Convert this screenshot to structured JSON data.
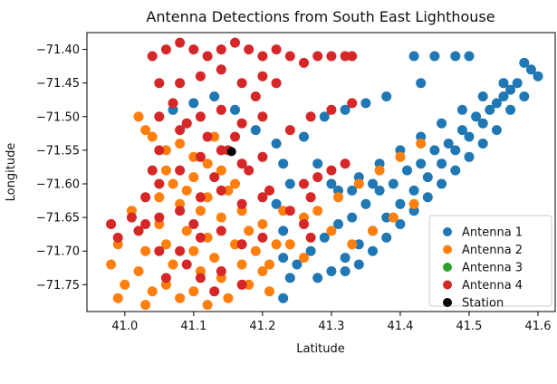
{
  "chart_data": {
    "type": "scatter",
    "title": "Antenna Detections from South East Lighthouse",
    "xlabel": "Latitude",
    "ylabel": "Longitude",
    "xlim": [
      40.945,
      41.625
    ],
    "ylim": [
      -71.79,
      -71.375
    ],
    "xticks": [
      {
        "value": 41.0,
        "label": "41.0"
      },
      {
        "value": 41.1,
        "label": "41.1"
      },
      {
        "value": 41.2,
        "label": "41.2"
      },
      {
        "value": 41.3,
        "label": "41.3"
      },
      {
        "value": 41.4,
        "label": "41.4"
      },
      {
        "value": 41.5,
        "label": "41.5"
      },
      {
        "value": 41.6,
        "label": "41.6"
      }
    ],
    "yticks": [
      {
        "value": -71.4,
        "label": "−71.40"
      },
      {
        "value": -71.45,
        "label": "−71.45"
      },
      {
        "value": -71.5,
        "label": "−71.50"
      },
      {
        "value": -71.55,
        "label": "−71.55"
      },
      {
        "value": -71.6,
        "label": "−71.60"
      },
      {
        "value": -71.65,
        "label": "−71.65"
      },
      {
        "value": -71.7,
        "label": "−71.70"
      },
      {
        "value": -71.75,
        "label": "−71.75"
      }
    ],
    "grid": false,
    "legend_position": "lower-right",
    "series": [
      {
        "name": "Antenna 1",
        "color": "#1f77b4",
        "points": [
          [
            41.07,
            -71.49
          ],
          [
            41.1,
            -71.48
          ],
          [
            41.13,
            -71.47
          ],
          [
            41.16,
            -71.49
          ],
          [
            41.19,
            -71.52
          ],
          [
            41.22,
            -71.54
          ],
          [
            41.23,
            -71.57
          ],
          [
            41.24,
            -71.6
          ],
          [
            41.22,
            -71.63
          ],
          [
            41.23,
            -71.67
          ],
          [
            41.23,
            -71.71
          ],
          [
            41.24,
            -71.74
          ],
          [
            41.23,
            -71.77
          ],
          [
            41.26,
            -71.53
          ],
          [
            41.29,
            -71.5
          ],
          [
            41.32,
            -71.49
          ],
          [
            41.35,
            -71.48
          ],
          [
            41.38,
            -71.47
          ],
          [
            41.28,
            -71.57
          ],
          [
            41.3,
            -71.6
          ],
          [
            41.33,
            -71.61
          ],
          [
            41.36,
            -71.6
          ],
          [
            41.42,
            -71.41
          ],
          [
            41.45,
            -71.41
          ],
          [
            41.48,
            -71.41
          ],
          [
            41.5,
            -71.41
          ],
          [
            41.43,
            -71.45
          ],
          [
            41.58,
            -71.42
          ],
          [
            41.59,
            -71.43
          ],
          [
            41.57,
            -71.45
          ],
          [
            41.55,
            -71.47
          ],
          [
            41.53,
            -71.49
          ],
          [
            41.51,
            -71.5
          ],
          [
            41.49,
            -71.52
          ],
          [
            41.47,
            -71.54
          ],
          [
            41.45,
            -71.55
          ],
          [
            41.43,
            -71.57
          ],
          [
            41.41,
            -71.58
          ],
          [
            41.39,
            -71.6
          ],
          [
            41.37,
            -71.61
          ],
          [
            41.35,
            -71.63
          ],
          [
            41.33,
            -71.65
          ],
          [
            41.31,
            -71.66
          ],
          [
            41.29,
            -71.68
          ],
          [
            41.27,
            -71.7
          ],
          [
            41.25,
            -71.72
          ],
          [
            41.56,
            -71.46
          ],
          [
            41.54,
            -71.48
          ],
          [
            41.52,
            -71.51
          ],
          [
            41.5,
            -71.53
          ],
          [
            41.48,
            -71.55
          ],
          [
            41.46,
            -71.57
          ],
          [
            41.44,
            -71.59
          ],
          [
            41.42,
            -71.61
          ],
          [
            41.4,
            -71.63
          ],
          [
            41.38,
            -71.65
          ],
          [
            41.36,
            -71.67
          ],
          [
            41.34,
            -71.69
          ],
          [
            41.32,
            -71.71
          ],
          [
            41.3,
            -71.73
          ],
          [
            41.28,
            -71.74
          ],
          [
            41.6,
            -71.44
          ],
          [
            41.58,
            -71.47
          ],
          [
            41.56,
            -71.49
          ],
          [
            41.54,
            -71.52
          ],
          [
            41.52,
            -71.54
          ],
          [
            41.5,
            -71.56
          ],
          [
            41.48,
            -71.58
          ],
          [
            41.46,
            -71.6
          ],
          [
            41.44,
            -71.62
          ],
          [
            41.42,
            -71.64
          ],
          [
            41.4,
            -71.66
          ],
          [
            41.38,
            -71.68
          ],
          [
            41.36,
            -71.7
          ],
          [
            41.34,
            -71.72
          ],
          [
            41.32,
            -71.73
          ],
          [
            41.31,
            -71.61
          ],
          [
            41.34,
            -71.59
          ],
          [
            41.37,
            -71.57
          ],
          [
            41.4,
            -71.55
          ],
          [
            41.43,
            -71.53
          ],
          [
            41.46,
            -71.51
          ],
          [
            41.49,
            -71.49
          ],
          [
            41.52,
            -71.47
          ],
          [
            41.55,
            -71.45
          ]
        ]
      },
      {
        "name": "Antenna 2",
        "color": "#ff7f0e",
        "points": [
          [
            40.98,
            -71.66
          ],
          [
            40.99,
            -71.69
          ],
          [
            40.98,
            -71.72
          ],
          [
            41.0,
            -71.75
          ],
          [
            40.99,
            -71.77
          ],
          [
            41.02,
            -71.67
          ],
          [
            41.03,
            -71.7
          ],
          [
            41.02,
            -71.73
          ],
          [
            41.04,
            -71.76
          ],
          [
            41.05,
            -71.66
          ],
          [
            41.06,
            -71.69
          ],
          [
            41.07,
            -71.72
          ],
          [
            41.06,
            -71.75
          ],
          [
            41.08,
            -71.77
          ],
          [
            41.09,
            -71.67
          ],
          [
            41.1,
            -71.7
          ],
          [
            41.11,
            -71.73
          ],
          [
            41.1,
            -71.76
          ],
          [
            41.12,
            -71.68
          ],
          [
            41.13,
            -71.71
          ],
          [
            41.14,
            -71.74
          ],
          [
            41.15,
            -71.77
          ],
          [
            41.16,
            -71.69
          ],
          [
            41.17,
            -71.72
          ],
          [
            41.18,
            -71.75
          ],
          [
            41.19,
            -71.7
          ],
          [
            41.2,
            -71.73
          ],
          [
            41.21,
            -71.76
          ],
          [
            41.05,
            -71.62
          ],
          [
            41.07,
            -71.6
          ],
          [
            41.08,
            -71.63
          ],
          [
            41.06,
            -71.58
          ],
          [
            41.09,
            -71.61
          ],
          [
            41.11,
            -71.64
          ],
          [
            41.1,
            -71.59
          ],
          [
            41.12,
            -71.62
          ],
          [
            41.14,
            -71.65
          ],
          [
            41.15,
            -71.61
          ],
          [
            41.17,
            -71.64
          ],
          [
            41.18,
            -71.67
          ],
          [
            41.2,
            -71.66
          ],
          [
            41.22,
            -71.69
          ],
          [
            41.21,
            -71.72
          ],
          [
            41.04,
            -71.53
          ],
          [
            41.06,
            -71.55
          ],
          [
            41.08,
            -71.54
          ],
          [
            41.1,
            -71.56
          ],
          [
            41.12,
            -71.57
          ],
          [
            41.14,
            -71.58
          ],
          [
            41.16,
            -71.6
          ],
          [
            41.03,
            -71.52
          ],
          [
            41.02,
            -71.5
          ],
          [
            41.09,
            -71.51
          ],
          [
            41.13,
            -71.53
          ],
          [
            41.01,
            -71.64
          ],
          [
            41.03,
            -71.78
          ],
          [
            41.12,
            -71.78
          ],
          [
            41.24,
            -71.69
          ],
          [
            41.23,
            -71.64
          ],
          [
            41.26,
            -71.65
          ],
          [
            41.28,
            -71.64
          ],
          [
            41.31,
            -71.62
          ],
          [
            41.34,
            -71.6
          ],
          [
            41.37,
            -71.58
          ],
          [
            41.4,
            -71.56
          ],
          [
            41.43,
            -71.54
          ],
          [
            41.3,
            -71.67
          ],
          [
            41.33,
            -71.69
          ],
          [
            41.36,
            -71.67
          ],
          [
            41.39,
            -71.65
          ],
          [
            41.42,
            -71.63
          ],
          [
            41.26,
            -71.71
          ]
        ]
      },
      {
        "name": "Antenna 3",
        "color": "#2ca02c",
        "points": []
      },
      {
        "name": "Antenna 4",
        "color": "#d62728",
        "points": [
          [
            41.04,
            -71.41
          ],
          [
            41.06,
            -71.4
          ],
          [
            41.08,
            -71.39
          ],
          [
            41.1,
            -71.4
          ],
          [
            41.12,
            -71.41
          ],
          [
            41.14,
            -71.4
          ],
          [
            41.16,
            -71.39
          ],
          [
            41.18,
            -71.4
          ],
          [
            41.2,
            -71.41
          ],
          [
            41.22,
            -71.4
          ],
          [
            41.24,
            -71.41
          ],
          [
            41.26,
            -71.42
          ],
          [
            41.28,
            -71.41
          ],
          [
            41.3,
            -71.41
          ],
          [
            41.32,
            -71.41
          ],
          [
            41.33,
            -71.41
          ],
          [
            41.05,
            -71.45
          ],
          [
            41.05,
            -71.5
          ],
          [
            41.05,
            -71.55
          ],
          [
            41.05,
            -71.6
          ],
          [
            41.05,
            -71.65
          ],
          [
            41.05,
            -71.7
          ],
          [
            41.08,
            -71.45
          ],
          [
            41.08,
            -71.52
          ],
          [
            41.08,
            -71.58
          ],
          [
            41.08,
            -71.64
          ],
          [
            41.08,
            -71.7
          ],
          [
            41.11,
            -71.44
          ],
          [
            41.11,
            -71.5
          ],
          [
            41.11,
            -71.56
          ],
          [
            41.11,
            -71.62
          ],
          [
            41.11,
            -71.68
          ],
          [
            41.11,
            -71.74
          ],
          [
            41.14,
            -71.43
          ],
          [
            41.14,
            -71.49
          ],
          [
            41.14,
            -71.55
          ],
          [
            41.14,
            -71.61
          ],
          [
            41.14,
            -71.67
          ],
          [
            41.14,
            -71.73
          ],
          [
            41.17,
            -71.45
          ],
          [
            41.17,
            -71.51
          ],
          [
            41.17,
            -71.57
          ],
          [
            41.17,
            -71.63
          ],
          [
            41.17,
            -71.69
          ],
          [
            41.17,
            -71.75
          ],
          [
            41.2,
            -71.44
          ],
          [
            41.2,
            -71.5
          ],
          [
            41.2,
            -71.56
          ],
          [
            41.2,
            -71.62
          ],
          [
            41.2,
            -71.68
          ],
          [
            41.01,
            -71.65
          ],
          [
            40.98,
            -71.66
          ],
          [
            40.99,
            -71.68
          ],
          [
            41.02,
            -71.67
          ],
          [
            41.03,
            -71.66
          ],
          [
            41.07,
            -71.48
          ],
          [
            41.09,
            -71.51
          ],
          [
            41.12,
            -71.53
          ],
          [
            41.15,
            -71.55
          ],
          [
            41.18,
            -71.58
          ],
          [
            41.21,
            -71.61
          ],
          [
            41.24,
            -71.64
          ],
          [
            41.26,
            -71.66
          ],
          [
            41.27,
            -71.68
          ],
          [
            41.24,
            -71.52
          ],
          [
            41.27,
            -71.5
          ],
          [
            41.3,
            -71.49
          ],
          [
            41.33,
            -71.48
          ],
          [
            41.26,
            -71.6
          ],
          [
            41.28,
            -71.59
          ],
          [
            41.3,
            -71.58
          ],
          [
            41.32,
            -71.57
          ],
          [
            41.27,
            -71.62
          ],
          [
            41.04,
            -71.58
          ],
          [
            41.03,
            -71.62
          ],
          [
            41.19,
            -71.47
          ],
          [
            41.22,
            -71.45
          ],
          [
            41.16,
            -71.53
          ],
          [
            41.13,
            -71.59
          ],
          [
            41.1,
            -71.66
          ],
          [
            41.09,
            -71.72
          ],
          [
            41.06,
            -71.74
          ],
          [
            41.13,
            -71.76
          ]
        ]
      },
      {
        "name": "Station",
        "color": "#000000",
        "points": [
          [
            41.155,
            -71.552
          ]
        ]
      }
    ]
  }
}
